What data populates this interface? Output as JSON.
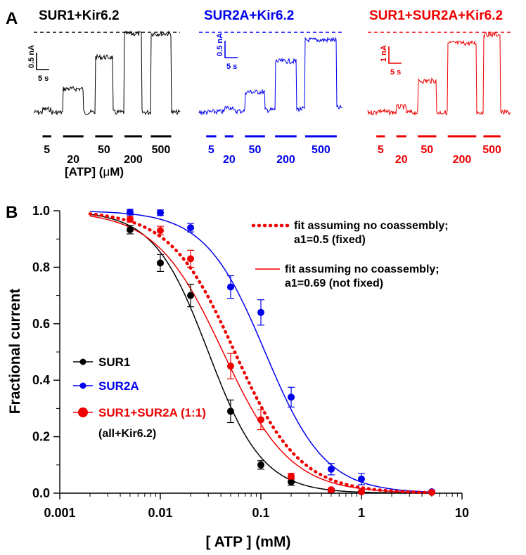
{
  "panel_a": {
    "label": "A",
    "atp_axis_label": "[ATP] (",
    "atp_axis_mu": "μ",
    "atp_axis_unit": "M)",
    "traces": [
      {
        "title": "SUR1+Kir6.2",
        "color": "#000000",
        "scale_current": "0.5 nA",
        "scale_time": "5 s",
        "concentrations": [
          "5",
          "20",
          "50",
          "200",
          "500"
        ],
        "levels": [
          0.04,
          0.3,
          0.7,
          1.0,
          1.0
        ]
      },
      {
        "title": "SUR2A+Kir6.2",
        "color": "#0000ee",
        "scale_current": "0.5 nA",
        "scale_time": "5 s",
        "concentrations": [
          "5",
          "20",
          "50",
          "200",
          "500"
        ],
        "levels": [
          0.0,
          0.05,
          0.26,
          0.65,
          0.92
        ]
      },
      {
        "title": "SUR1+SUR2A+Kir6.2",
        "color": "#ee0000",
        "scale_current": "1 nA",
        "scale_time": "5 s",
        "concentrations": [
          "5",
          "20",
          "50",
          "200",
          "500"
        ],
        "levels": [
          0.02,
          0.07,
          0.4,
          0.88,
          0.99
        ]
      }
    ]
  },
  "panel_b": {
    "label": "B",
    "legend_note": "(all+Kir6.2)",
    "fit_labels": {
      "dotted_line1": "fit assuming no coassembly;",
      "dotted_line2": "a1=0.5 (fixed)",
      "solid_line1": "fit assuming no coassembly;",
      "solid_line2": "a1=0.69 (not fixed)"
    }
  },
  "chart_data": {
    "type": "scatter",
    "title": "",
    "xlabel": "[ ATP ]  (mM)",
    "ylabel": "Fractional current",
    "xscale": "log",
    "xlim": [
      0.001,
      10
    ],
    "ylim": [
      0,
      1.0
    ],
    "xticks": [
      "0.001",
      "0.01",
      "0.1",
      "1",
      "10"
    ],
    "yticks": [
      "0.0",
      "0.2",
      "0.4",
      "0.6",
      "0.8",
      "1.0"
    ],
    "grid": false,
    "legend_position": "bottom-left",
    "series": [
      {
        "name": "SUR1",
        "color": "#000000",
        "x": [
          0.005,
          0.01,
          0.02,
          0.05,
          0.1,
          0.2,
          0.5,
          1,
          5
        ],
        "y": [
          0.933,
          0.815,
          0.7,
          0.29,
          0.1,
          0.04,
          0.01,
          0.005,
          0.003
        ],
        "err": [
          0.015,
          0.03,
          0.04,
          0.04,
          0.015,
          0.012,
          0.005,
          0.003,
          0.002
        ],
        "fit": {
          "ic50": 0.03,
          "hill": 1.6
        }
      },
      {
        "name": "SUR2A",
        "color": "#0000ee",
        "x": [
          0.005,
          0.01,
          0.02,
          0.05,
          0.1,
          0.2,
          0.5,
          1,
          5
        ],
        "y": [
          0.995,
          0.993,
          0.94,
          0.73,
          0.64,
          0.34,
          0.085,
          0.05,
          0.005
        ],
        "err": [
          0.01,
          0.01,
          0.015,
          0.04,
          0.045,
          0.035,
          0.02,
          0.02,
          0.003
        ],
        "fit": {
          "ic50": 0.11,
          "hill": 1.45
        }
      },
      {
        "name": "SUR1+SUR2A (1:1)",
        "color": "#ee0000",
        "x": [
          0.005,
          0.01,
          0.02,
          0.05,
          0.1,
          0.2,
          0.5,
          1,
          5
        ],
        "y": [
          0.97,
          0.93,
          0.83,
          0.45,
          0.26,
          0.06,
          0.012,
          0.005,
          0.003
        ],
        "err": [
          0.01,
          0.015,
          0.03,
          0.045,
          0.035,
          0.01,
          0.005,
          0.003,
          0.002
        ],
        "fit": {
          "ic50": 0.042,
          "hill": 1.3
        }
      }
    ],
    "fits": [
      {
        "label": "fit assuming no coassembly; a1=0.5 (fixed)",
        "style": "dotted",
        "color": "#ee0000",
        "ic50": 0.055,
        "hill": 1.35
      },
      {
        "label": "fit assuming no coassembly; a1=0.69 (not fixed)",
        "style": "solid",
        "color": "#ee0000",
        "ic50": 0.042,
        "hill": 1.3
      }
    ]
  }
}
